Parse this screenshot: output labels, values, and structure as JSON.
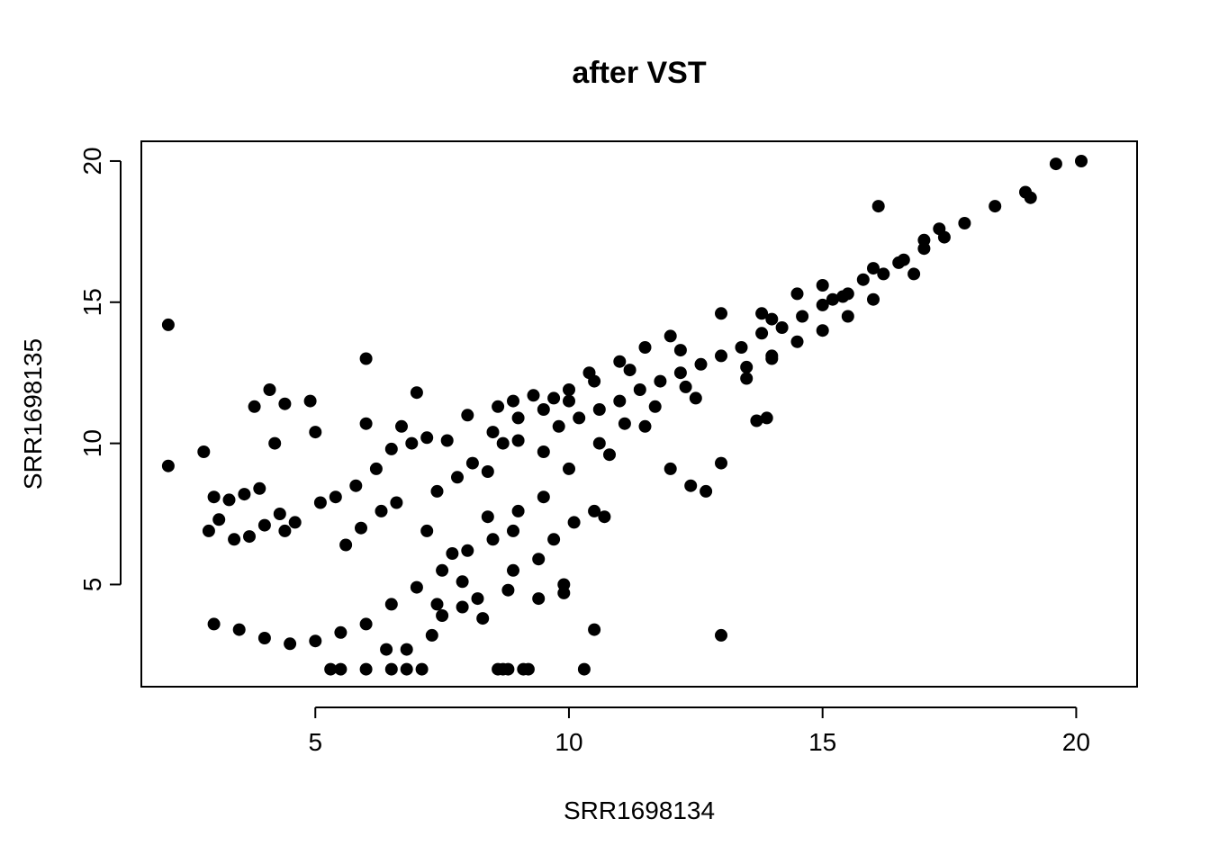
{
  "chart_data": {
    "type": "scatter",
    "title": "after VST",
    "xlabel": "SRR1698134",
    "ylabel": "SRR1698135",
    "xlim": [
      1.57,
      21.2
    ],
    "ylim": [
      1.38,
      20.7
    ],
    "xticks": [
      5,
      10,
      15,
      20
    ],
    "yticks": [
      5,
      10,
      15,
      20
    ],
    "xtick_labels": [
      "5",
      "10",
      "15",
      "20"
    ],
    "ytick_labels": [
      "5",
      "10",
      "15",
      "20"
    ],
    "grid": false,
    "legend": "none",
    "point_color": "#000000",
    "points": [
      [
        2.1,
        14.2
      ],
      [
        6.0,
        13.0
      ],
      [
        3.8,
        11.3
      ],
      [
        4.1,
        11.9
      ],
      [
        4.4,
        11.4
      ],
      [
        4.9,
        11.5
      ],
      [
        4.2,
        10.0
      ],
      [
        5.0,
        10.4
      ],
      [
        6.7,
        10.6
      ],
      [
        7.0,
        11.8
      ],
      [
        6.0,
        10.7
      ],
      [
        2.8,
        9.7
      ],
      [
        2.1,
        9.2
      ],
      [
        10.5,
        3.4
      ],
      [
        13.0,
        3.2
      ],
      [
        13.0,
        9.3
      ],
      [
        13.7,
        10.8
      ],
      [
        13.9,
        10.9
      ],
      [
        12.0,
        9.1
      ],
      [
        16.1,
        18.4
      ],
      [
        18.4,
        18.4
      ],
      [
        19.0,
        18.9
      ],
      [
        19.1,
        18.7
      ],
      [
        19.6,
        19.9
      ],
      [
        20.1,
        20.0
      ],
      [
        17.8,
        17.8
      ],
      [
        17.3,
        17.6
      ],
      [
        16.8,
        16.0
      ],
      [
        17.0,
        17.2
      ],
      [
        15.2,
        15.1
      ],
      [
        13.0,
        14.6
      ],
      [
        10.4,
        12.5
      ],
      [
        12.4,
        8.5
      ],
      [
        12.7,
        8.3
      ],
      [
        10.5,
        7.6
      ],
      [
        10.7,
        7.4
      ],
      [
        9.9,
        4.7
      ],
      [
        9.9,
        5.0
      ],
      [
        9.4,
        4.5
      ],
      [
        8.8,
        4.8
      ],
      [
        8.3,
        3.8
      ],
      [
        9.2,
        2.0
      ],
      [
        8.8,
        2.0
      ],
      [
        8.6,
        2.0
      ],
      [
        10.3,
        2.0
      ],
      [
        5.5,
        2.0
      ],
      [
        6.0,
        2.0
      ],
      [
        5.3,
        2.0
      ],
      [
        6.5,
        2.0
      ],
      [
        6.8,
        2.0
      ],
      [
        7.1,
        2.0
      ],
      [
        8.7,
        2.0
      ],
      [
        9.1,
        2.0
      ],
      [
        7.3,
        3.2
      ],
      [
        6.4,
        2.7
      ],
      [
        6.8,
        2.7
      ],
      [
        7.5,
        3.9
      ],
      [
        7.9,
        4.2
      ],
      [
        8.2,
        4.5
      ],
      [
        8.9,
        5.5
      ],
      [
        7.7,
        6.1
      ],
      [
        7.2,
        6.9
      ],
      [
        5.4,
        8.1
      ],
      [
        5.8,
        8.5
      ],
      [
        6.2,
        9.1
      ],
      [
        6.5,
        9.8
      ],
      [
        6.9,
        10.0
      ],
      [
        7.2,
        10.2
      ],
      [
        7.6,
        10.1
      ],
      [
        8.0,
        11.0
      ],
      [
        8.6,
        11.3
      ],
      [
        8.9,
        11.5
      ],
      [
        9.3,
        11.7
      ],
      [
        9.7,
        11.6
      ],
      [
        10.0,
        11.5
      ],
      [
        11.2,
        12.6
      ],
      [
        12.2,
        13.3
      ],
      [
        14.0,
        14.4
      ],
      [
        15.0,
        15.6
      ],
      [
        16.5,
        16.4
      ],
      [
        15.5,
        15.3
      ],
      [
        16.0,
        16.2
      ],
      [
        3.0,
        8.1
      ],
      [
        3.3,
        8.0
      ],
      [
        3.6,
        8.2
      ],
      [
        3.9,
        8.4
      ],
      [
        4.3,
        7.5
      ],
      [
        4.6,
        7.2
      ],
      [
        5.1,
        7.9
      ],
      [
        2.9,
        6.9
      ],
      [
        3.1,
        7.3
      ],
      [
        3.4,
        6.6
      ],
      [
        3.7,
        6.7
      ],
      [
        4.0,
        7.1
      ],
      [
        4.4,
        6.9
      ],
      [
        5.6,
        6.4
      ],
      [
        5.9,
        7.0
      ],
      [
        6.3,
        7.6
      ],
      [
        6.6,
        7.9
      ],
      [
        7.4,
        8.3
      ],
      [
        7.8,
        8.8
      ],
      [
        8.1,
        9.3
      ],
      [
        8.4,
        9.0
      ],
      [
        8.7,
        10.0
      ],
      [
        9.0,
        10.1
      ],
      [
        9.5,
        9.7
      ],
      [
        9.8,
        10.6
      ],
      [
        10.2,
        10.9
      ],
      [
        10.6,
        11.2
      ],
      [
        11.0,
        11.5
      ],
      [
        11.4,
        11.9
      ],
      [
        11.8,
        12.2
      ],
      [
        12.2,
        12.5
      ],
      [
        12.6,
        12.8
      ],
      [
        13.0,
        13.1
      ],
      [
        13.4,
        13.4
      ],
      [
        13.8,
        13.9
      ],
      [
        14.2,
        14.1
      ],
      [
        14.6,
        14.5
      ],
      [
        15.0,
        14.9
      ],
      [
        15.4,
        15.2
      ],
      [
        15.8,
        15.8
      ],
      [
        16.2,
        16.0
      ],
      [
        16.6,
        16.5
      ],
      [
        17.0,
        16.9
      ],
      [
        17.4,
        17.3
      ],
      [
        13.5,
        12.3
      ],
      [
        14.0,
        13.0
      ],
      [
        12.5,
        11.6
      ],
      [
        11.5,
        10.6
      ],
      [
        10.8,
        9.6
      ],
      [
        10.0,
        9.1
      ],
      [
        9.5,
        8.1
      ],
      [
        9.0,
        7.6
      ],
      [
        8.5,
        6.6
      ],
      [
        8.0,
        6.2
      ],
      [
        7.5,
        5.5
      ],
      [
        7.0,
        4.9
      ],
      [
        6.5,
        4.3
      ],
      [
        6.0,
        3.6
      ],
      [
        5.5,
        3.3
      ],
      [
        5.0,
        3.0
      ],
      [
        4.5,
        2.9
      ],
      [
        4.0,
        3.1
      ],
      [
        3.5,
        3.4
      ],
      [
        3.0,
        3.6
      ],
      [
        12.0,
        13.8
      ],
      [
        11.5,
        13.4
      ],
      [
        11.0,
        12.9
      ],
      [
        10.5,
        12.2
      ],
      [
        10.0,
        11.9
      ],
      [
        9.5,
        11.2
      ],
      [
        9.0,
        10.9
      ],
      [
        8.5,
        10.4
      ],
      [
        14.5,
        15.3
      ],
      [
        13.8,
        14.6
      ],
      [
        16.0,
        15.1
      ],
      [
        15.5,
        14.5
      ],
      [
        15.0,
        14.0
      ],
      [
        14.5,
        13.6
      ],
      [
        14.0,
        13.1
      ],
      [
        13.5,
        12.7
      ],
      [
        10.1,
        7.2
      ],
      [
        9.7,
        6.6
      ],
      [
        9.4,
        5.9
      ],
      [
        8.9,
        6.9
      ],
      [
        8.4,
        7.4
      ],
      [
        7.9,
        5.1
      ],
      [
        7.4,
        4.3
      ],
      [
        12.3,
        12.0
      ],
      [
        11.7,
        11.3
      ],
      [
        11.1,
        10.7
      ],
      [
        10.6,
        10.0
      ]
    ]
  }
}
